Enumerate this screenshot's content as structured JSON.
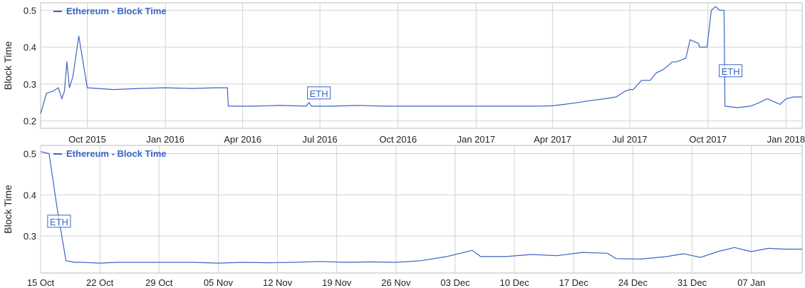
{
  "chart_data": [
    {
      "type": "line",
      "ylabel": "Block Time",
      "series_name": "Ethereum - Block Time",
      "color": "#3a66c4",
      "grid": true,
      "legend_position": "top-left",
      "xlim": [
        "2015-08-07",
        "2018-01-20"
      ],
      "ylim": [
        0.18,
        0.52
      ],
      "y_ticks": [
        0.2,
        0.3,
        0.4,
        0.5
      ],
      "y_tick_labels": [
        "0.2",
        "0.3",
        "0.4",
        "0.5"
      ],
      "x_ticks": [
        "2015-10-01",
        "2016-01-01",
        "2016-04-01",
        "2016-07-01",
        "2016-10-01",
        "2017-01-01",
        "2017-04-01",
        "2017-07-01",
        "2017-10-01",
        "2018-01-01"
      ],
      "x_tick_labels": [
        "Oct 2015",
        "Jan 2016",
        "Apr 2016",
        "Jul 2016",
        "Oct 2016",
        "Jan 2017",
        "Apr 2017",
        "Jul 2017",
        "Oct 2017",
        "Jan 2018"
      ],
      "annotations": [
        {
          "x": "2016-06-18",
          "y": 0.275,
          "label": "ETH"
        },
        {
          "x": "2017-10-16",
          "y": 0.335,
          "label": "ETH"
        }
      ],
      "x": [
        "2015-08-07",
        "2015-08-14",
        "2015-08-21",
        "2015-08-28",
        "2015-09-01",
        "2015-09-04",
        "2015-09-07",
        "2015-09-10",
        "2015-09-14",
        "2015-09-21",
        "2015-10-01",
        "2015-11-01",
        "2015-12-01",
        "2016-01-01",
        "2016-02-01",
        "2016-03-01",
        "2016-03-14",
        "2016-03-15",
        "2016-04-15",
        "2016-05-15",
        "2016-06-15",
        "2016-06-18",
        "2016-06-21",
        "2016-07-15",
        "2016-08-15",
        "2016-09-15",
        "2016-10-15",
        "2016-11-15",
        "2016-12-15",
        "2017-01-15",
        "2017-02-15",
        "2017-03-15",
        "2017-04-01",
        "2017-04-15",
        "2017-05-01",
        "2017-05-15",
        "2017-06-01",
        "2017-06-15",
        "2017-06-25",
        "2017-07-01",
        "2017-07-05",
        "2017-07-15",
        "2017-07-25",
        "2017-08-01",
        "2017-08-10",
        "2017-08-20",
        "2017-08-25",
        "2017-09-05",
        "2017-09-10",
        "2017-09-20",
        "2017-09-21",
        "2017-09-30",
        "2017-10-05",
        "2017-10-10",
        "2017-10-15",
        "2017-10-20",
        "2017-10-21",
        "2017-11-05",
        "2017-11-20",
        "2017-12-01",
        "2017-12-05",
        "2017-12-10",
        "2017-12-20",
        "2017-12-25",
        "2018-01-01",
        "2018-01-10",
        "2018-01-20"
      ],
      "values": [
        0.22,
        0.275,
        0.28,
        0.29,
        0.26,
        0.28,
        0.36,
        0.29,
        0.32,
        0.43,
        0.29,
        0.285,
        0.288,
        0.29,
        0.288,
        0.29,
        0.29,
        0.24,
        0.24,
        0.242,
        0.24,
        0.25,
        0.24,
        0.24,
        0.242,
        0.24,
        0.24,
        0.24,
        0.24,
        0.24,
        0.24,
        0.24,
        0.241,
        0.245,
        0.25,
        0.255,
        0.26,
        0.265,
        0.28,
        0.285,
        0.285,
        0.31,
        0.31,
        0.33,
        0.34,
        0.36,
        0.36,
        0.37,
        0.42,
        0.41,
        0.4,
        0.4,
        0.5,
        0.51,
        0.5,
        0.5,
        0.24,
        0.236,
        0.24,
        0.25,
        0.255,
        0.26,
        0.25,
        0.245,
        0.26,
        0.265,
        0.265
      ]
    },
    {
      "type": "line",
      "ylabel": "Block Time",
      "series_name": "Ethereum - Block Time",
      "color": "#3a66c4",
      "grid": true,
      "legend_position": "top-left",
      "xlim": [
        "2017-10-15",
        "2018-01-13"
      ],
      "ylim": [
        0.21,
        0.52
      ],
      "y_ticks": [
        0.3,
        0.4,
        0.5
      ],
      "y_tick_labels": [
        "0.3",
        "0.4",
        "0.5"
      ],
      "x_ticks": [
        "2017-10-15",
        "2017-10-22",
        "2017-10-29",
        "2017-11-05",
        "2017-11-12",
        "2017-11-19",
        "2017-11-26",
        "2017-12-03",
        "2017-12-10",
        "2017-12-17",
        "2017-12-24",
        "2017-12-31",
        "2018-01-07"
      ],
      "x_tick_labels": [
        "15 Oct",
        "22 Oct",
        "29 Oct",
        "05 Nov",
        "12 Nov",
        "19 Nov",
        "26 Nov",
        "03 Dec",
        "10 Dec",
        "17 Dec",
        "24 Dec",
        "31 Dec",
        "07 Jan"
      ],
      "annotations": [
        {
          "x": "2017-10-16",
          "y": 0.335,
          "label": "ETH"
        }
      ],
      "x": [
        "2017-10-15",
        "2017-10-16",
        "2017-10-17",
        "2017-10-18",
        "2017-10-19",
        "2017-10-20",
        "2017-10-22",
        "2017-10-24",
        "2017-10-27",
        "2017-10-30",
        "2017-11-02",
        "2017-11-05",
        "2017-11-08",
        "2017-11-11",
        "2017-11-14",
        "2017-11-17",
        "2017-11-20",
        "2017-11-23",
        "2017-11-26",
        "2017-11-29",
        "2017-12-02",
        "2017-12-05",
        "2017-12-06",
        "2017-12-09",
        "2017-12-12",
        "2017-12-15",
        "2017-12-18",
        "2017-12-21",
        "2017-12-22",
        "2017-12-25",
        "2017-12-28",
        "2017-12-30",
        "2018-01-01",
        "2018-01-03",
        "2018-01-05",
        "2018-01-07",
        "2018-01-09",
        "2018-01-11",
        "2018-01-13"
      ],
      "values": [
        0.505,
        0.5,
        0.36,
        0.24,
        0.236,
        0.236,
        0.234,
        0.236,
        0.236,
        0.236,
        0.236,
        0.234,
        0.236,
        0.235,
        0.236,
        0.238,
        0.236,
        0.237,
        0.236,
        0.24,
        0.25,
        0.265,
        0.25,
        0.25,
        0.255,
        0.252,
        0.26,
        0.258,
        0.245,
        0.244,
        0.25,
        0.257,
        0.248,
        0.262,
        0.272,
        0.262,
        0.27,
        0.268,
        0.268
      ]
    }
  ]
}
